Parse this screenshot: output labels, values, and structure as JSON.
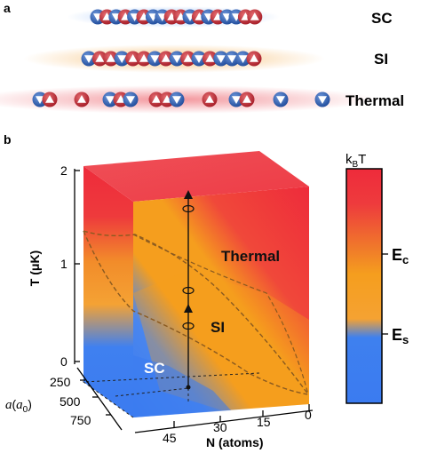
{
  "panel_a": {
    "label": "a",
    "rows": [
      {
        "label": "SC"
      },
      {
        "label": "SI"
      },
      {
        "label": "Thermal"
      }
    ]
  },
  "panel_b": {
    "label": "b",
    "regions": {
      "thermal": "Thermal",
      "si": "SI",
      "sc": "SC"
    },
    "y_axis": {
      "title": "T (μK)",
      "ticks": [
        "0",
        "1",
        "2"
      ]
    },
    "a_axis": {
      "title_main": "a",
      "title_paren_open": "(",
      "title_sym": "a",
      "title_sub": "0",
      "title_paren_close": ")",
      "ticks": [
        "250",
        "500",
        "750"
      ]
    },
    "n_axis": {
      "title": "N (atoms)",
      "ticks": [
        "45",
        "30",
        "15",
        "0"
      ]
    },
    "colorbar": {
      "top_main": "k",
      "top_sub": "B",
      "top_tail": "T",
      "ec_main": "E",
      "ec_sub": "c",
      "es_main": "E",
      "es_sub": "s",
      "colors": {
        "low": "#3b7bf0",
        "mid": "#f59e1e",
        "high": "#ee2b3b"
      }
    }
  },
  "colors": {
    "red": "#c0262d",
    "blue": "#2f5fb0",
    "orange": "#f39a25"
  }
}
